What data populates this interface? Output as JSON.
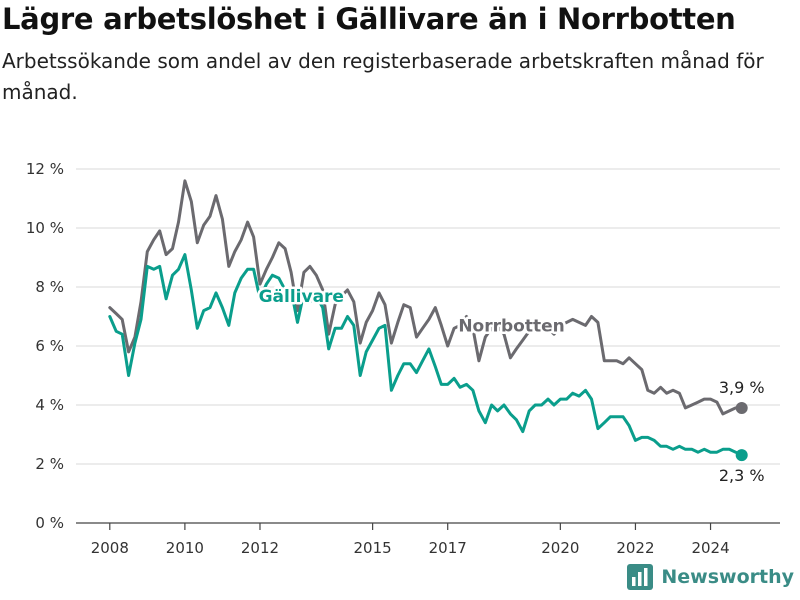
{
  "header": {
    "title": "Lägre arbetslöshet i Gällivare än i Norrbotten",
    "subtitle": "Arbetssökande som andel av den registerbaserade arbetskraften månad för månad."
  },
  "brand": {
    "name": "Newsworthy",
    "icon": "bar-chart-logo-icon",
    "color": "#3a8c86"
  },
  "chart_data": {
    "type": "line",
    "y_unit": "%",
    "ylim": [
      0,
      12
    ],
    "y_ticks": [
      0,
      2,
      4,
      6,
      8,
      10,
      12
    ],
    "y_tick_labels": [
      "0 %",
      "2 %",
      "4 %",
      "6 %",
      "8 %",
      "10 %",
      "12 %"
    ],
    "x_ticks": [
      2008,
      2010,
      2012,
      2015,
      2017,
      2020,
      2022,
      2024
    ],
    "xlim": [
      2007.1,
      2025.85
    ],
    "grid": "horizontal",
    "legend": "inline labels",
    "series": [
      {
        "name": "Norrbotten",
        "color": "#6b6a6f",
        "label_position": [
          2018.7,
          6.5
        ],
        "end_label": "3,9 %",
        "points": [
          [
            2008.0,
            7.3
          ],
          [
            2008.17,
            7.1
          ],
          [
            2008.33,
            6.9
          ],
          [
            2008.5,
            5.8
          ],
          [
            2008.67,
            6.3
          ],
          [
            2008.83,
            7.5
          ],
          [
            2009.0,
            9.2
          ],
          [
            2009.17,
            9.6
          ],
          [
            2009.33,
            9.9
          ],
          [
            2009.5,
            9.1
          ],
          [
            2009.67,
            9.3
          ],
          [
            2009.83,
            10.2
          ],
          [
            2010.0,
            11.6
          ],
          [
            2010.17,
            10.9
          ],
          [
            2010.33,
            9.5
          ],
          [
            2010.5,
            10.1
          ],
          [
            2010.67,
            10.4
          ],
          [
            2010.83,
            11.1
          ],
          [
            2011.0,
            10.3
          ],
          [
            2011.17,
            8.7
          ],
          [
            2011.33,
            9.2
          ],
          [
            2011.5,
            9.6
          ],
          [
            2011.67,
            10.2
          ],
          [
            2011.83,
            9.7
          ],
          [
            2012.0,
            8.1
          ],
          [
            2012.17,
            8.6
          ],
          [
            2012.33,
            9.0
          ],
          [
            2012.5,
            9.5
          ],
          [
            2012.67,
            9.3
          ],
          [
            2012.83,
            8.5
          ],
          [
            2013.0,
            7.2
          ],
          [
            2013.17,
            8.5
          ],
          [
            2013.33,
            8.7
          ],
          [
            2013.5,
            8.4
          ],
          [
            2013.67,
            7.9
          ],
          [
            2013.83,
            6.4
          ],
          [
            2014.0,
            7.4
          ],
          [
            2014.17,
            7.7
          ],
          [
            2014.33,
            7.9
          ],
          [
            2014.5,
            7.5
          ],
          [
            2014.67,
            6.1
          ],
          [
            2014.83,
            6.8
          ],
          [
            2015.0,
            7.2
          ],
          [
            2015.17,
            7.8
          ],
          [
            2015.33,
            7.4
          ],
          [
            2015.5,
            6.1
          ],
          [
            2015.67,
            6.8
          ],
          [
            2015.83,
            7.4
          ],
          [
            2016.0,
            7.3
          ],
          [
            2016.17,
            6.3
          ],
          [
            2016.33,
            6.6
          ],
          [
            2016.5,
            6.9
          ],
          [
            2016.67,
            7.3
          ],
          [
            2016.83,
            6.7
          ],
          [
            2017.0,
            6.0
          ],
          [
            2017.17,
            6.6
          ],
          [
            2017.33,
            6.7
          ],
          [
            2017.5,
            7.0
          ],
          [
            2017.67,
            6.6
          ],
          [
            2017.83,
            5.5
          ],
          [
            2018.0,
            6.3
          ],
          [
            2018.17,
            6.6
          ],
          [
            2018.33,
            6.7
          ],
          [
            2018.5,
            6.4
          ],
          [
            2018.67,
            5.6
          ],
          [
            2018.83,
            5.9
          ],
          [
            2019.0,
            6.2
          ],
          [
            2019.17,
            6.5
          ],
          [
            2019.33,
            6.8
          ],
          [
            2019.5,
            6.7
          ],
          [
            2019.67,
            6.6
          ],
          [
            2019.83,
            6.4
          ],
          [
            2020.0,
            6.7
          ],
          [
            2020.17,
            6.8
          ],
          [
            2020.33,
            6.9
          ],
          [
            2020.5,
            6.8
          ],
          [
            2020.67,
            6.7
          ],
          [
            2020.83,
            7.0
          ],
          [
            2021.0,
            6.8
          ],
          [
            2021.17,
            5.5
          ],
          [
            2021.33,
            5.5
          ],
          [
            2021.5,
            5.5
          ],
          [
            2021.67,
            5.4
          ],
          [
            2021.83,
            5.6
          ],
          [
            2022.0,
            5.4
          ],
          [
            2022.17,
            5.2
          ],
          [
            2022.33,
            4.5
          ],
          [
            2022.5,
            4.4
          ],
          [
            2022.67,
            4.6
          ],
          [
            2022.83,
            4.4
          ],
          [
            2023.0,
            4.5
          ],
          [
            2023.17,
            4.4
          ],
          [
            2023.33,
            3.9
          ],
          [
            2023.5,
            4.0
          ],
          [
            2023.67,
            4.1
          ],
          [
            2023.83,
            4.2
          ],
          [
            2024.0,
            4.2
          ],
          [
            2024.17,
            4.1
          ],
          [
            2024.33,
            3.7
          ],
          [
            2024.5,
            3.8
          ],
          [
            2024.67,
            3.9
          ],
          [
            2024.83,
            3.9
          ]
        ]
      },
      {
        "name": "Gällivare",
        "color": "#0a9e8c",
        "label_position": [
          2013.1,
          7.5
        ],
        "end_label": "2,3 %",
        "points": [
          [
            2008.0,
            7.0
          ],
          [
            2008.17,
            6.5
          ],
          [
            2008.33,
            6.4
          ],
          [
            2008.5,
            5.0
          ],
          [
            2008.67,
            6.1
          ],
          [
            2008.83,
            6.9
          ],
          [
            2009.0,
            8.7
          ],
          [
            2009.17,
            8.6
          ],
          [
            2009.33,
            8.7
          ],
          [
            2009.5,
            7.6
          ],
          [
            2009.67,
            8.4
          ],
          [
            2009.83,
            8.6
          ],
          [
            2010.0,
            9.1
          ],
          [
            2010.17,
            7.9
          ],
          [
            2010.33,
            6.6
          ],
          [
            2010.5,
            7.2
          ],
          [
            2010.67,
            7.3
          ],
          [
            2010.83,
            7.8
          ],
          [
            2011.0,
            7.3
          ],
          [
            2011.17,
            6.7
          ],
          [
            2011.33,
            7.8
          ],
          [
            2011.5,
            8.3
          ],
          [
            2011.67,
            8.6
          ],
          [
            2011.83,
            8.6
          ],
          [
            2012.0,
            7.6
          ],
          [
            2012.17,
            8.1
          ],
          [
            2012.33,
            8.4
          ],
          [
            2012.5,
            8.3
          ],
          [
            2012.67,
            7.9
          ],
          [
            2012.83,
            7.9
          ],
          [
            2013.0,
            6.8
          ],
          [
            2013.17,
            7.8
          ],
          [
            2013.33,
            7.5
          ],
          [
            2013.5,
            7.7
          ],
          [
            2013.67,
            7.3
          ],
          [
            2013.83,
            5.9
          ],
          [
            2014.0,
            6.6
          ],
          [
            2014.17,
            6.6
          ],
          [
            2014.33,
            7.0
          ],
          [
            2014.5,
            6.7
          ],
          [
            2014.67,
            5.0
          ],
          [
            2014.83,
            5.8
          ],
          [
            2015.0,
            6.2
          ],
          [
            2015.17,
            6.6
          ],
          [
            2015.33,
            6.7
          ],
          [
            2015.5,
            4.5
          ],
          [
            2015.67,
            5.0
          ],
          [
            2015.83,
            5.4
          ],
          [
            2016.0,
            5.4
          ],
          [
            2016.17,
            5.1
          ],
          [
            2016.33,
            5.5
          ],
          [
            2016.5,
            5.9
          ],
          [
            2016.67,
            5.3
          ],
          [
            2016.83,
            4.7
          ],
          [
            2017.0,
            4.7
          ],
          [
            2017.17,
            4.9
          ],
          [
            2017.33,
            4.6
          ],
          [
            2017.5,
            4.7
          ],
          [
            2017.67,
            4.5
          ],
          [
            2017.83,
            3.8
          ],
          [
            2018.0,
            3.4
          ],
          [
            2018.17,
            4.0
          ],
          [
            2018.33,
            3.8
          ],
          [
            2018.5,
            4.0
          ],
          [
            2018.67,
            3.7
          ],
          [
            2018.83,
            3.5
          ],
          [
            2019.0,
            3.1
          ],
          [
            2019.17,
            3.8
          ],
          [
            2019.33,
            4.0
          ],
          [
            2019.5,
            4.0
          ],
          [
            2019.67,
            4.2
          ],
          [
            2019.83,
            4.0
          ],
          [
            2020.0,
            4.2
          ],
          [
            2020.17,
            4.2
          ],
          [
            2020.33,
            4.4
          ],
          [
            2020.5,
            4.3
          ],
          [
            2020.67,
            4.5
          ],
          [
            2020.83,
            4.2
          ],
          [
            2021.0,
            3.2
          ],
          [
            2021.17,
            3.4
          ],
          [
            2021.33,
            3.6
          ],
          [
            2021.5,
            3.6
          ],
          [
            2021.67,
            3.6
          ],
          [
            2021.83,
            3.3
          ],
          [
            2022.0,
            2.8
          ],
          [
            2022.17,
            2.9
          ],
          [
            2022.33,
            2.9
          ],
          [
            2022.5,
            2.8
          ],
          [
            2022.67,
            2.6
          ],
          [
            2022.83,
            2.6
          ],
          [
            2023.0,
            2.5
          ],
          [
            2023.17,
            2.6
          ],
          [
            2023.33,
            2.5
          ],
          [
            2023.5,
            2.5
          ],
          [
            2023.67,
            2.4
          ],
          [
            2023.83,
            2.5
          ],
          [
            2024.0,
            2.4
          ],
          [
            2024.17,
            2.4
          ],
          [
            2024.33,
            2.5
          ],
          [
            2024.5,
            2.5
          ],
          [
            2024.67,
            2.4
          ],
          [
            2024.83,
            2.3
          ]
        ]
      }
    ]
  }
}
